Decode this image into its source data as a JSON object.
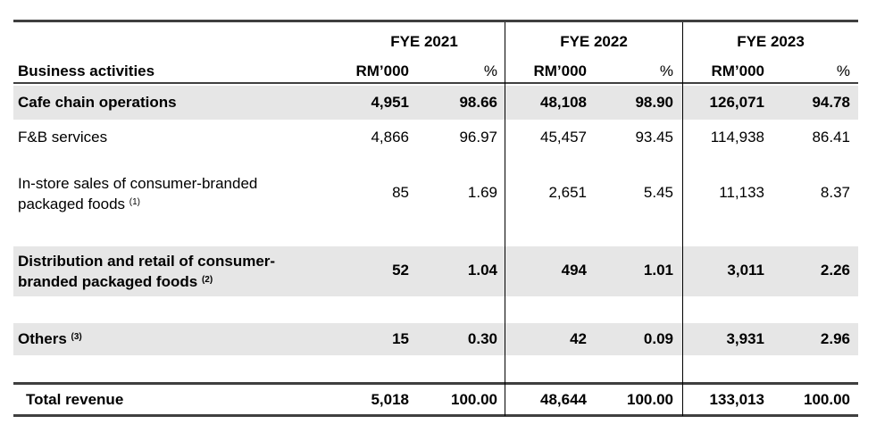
{
  "header": {
    "business_label": "Business activities",
    "years": [
      "FYE 2021",
      "FYE 2022",
      "FYE 2023"
    ],
    "unit_label": "RM’000",
    "pct_label": "%"
  },
  "rows": [
    {
      "label": "Cafe chain operations",
      "values": [
        "4,951",
        "98.66",
        "48,108",
        "98.90",
        "126,071",
        "94.78"
      ]
    },
    {
      "label": "F&B services",
      "values": [
        "4,866",
        "96.97",
        "45,457",
        "93.45",
        "114,938",
        "86.41"
      ]
    },
    {
      "label_line1": "In-store sales of consumer-branded",
      "label_line2": "packaged foods",
      "note": "(1)",
      "values": [
        "85",
        "1.69",
        "2,651",
        "5.45",
        "11,133",
        "8.37"
      ]
    },
    {
      "label_line1": "Distribution and retail of consumer-",
      "label_line2": "branded packaged foods",
      "note": "(2)",
      "values": [
        "52",
        "1.04",
        "494",
        "1.01",
        "3,011",
        "2.26"
      ]
    },
    {
      "label": "Others",
      "note": "(3)",
      "values": [
        "15",
        "0.30",
        "42",
        "0.09",
        "3,931",
        "2.96"
      ]
    },
    {
      "label": "Total revenue",
      "values": [
        "5,018",
        "100.00",
        "48,644",
        "100.00",
        "133,013",
        "100.00"
      ]
    }
  ]
}
